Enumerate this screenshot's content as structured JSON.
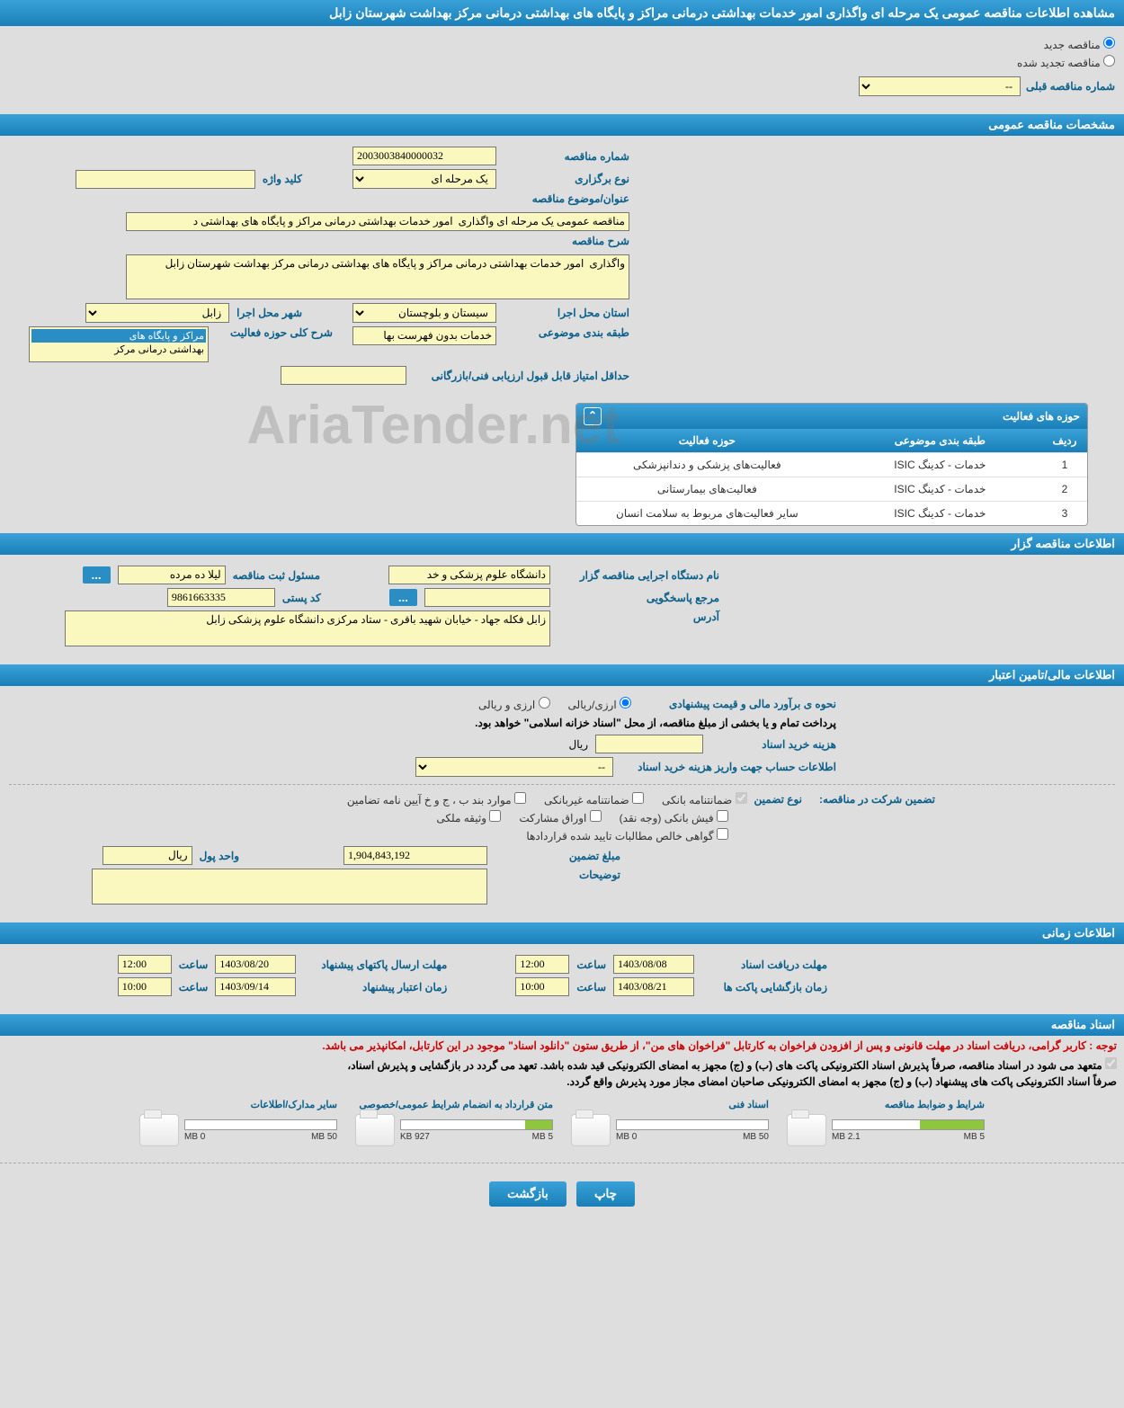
{
  "page_title": "مشاهده اطلاعات مناقصه عمومی یک مرحله ای واگذاری امور خدمات بهداشتی درمانی مراکز و پایگاه های بهداشتی درمانی مرکز بهداشت شهرستان زابل",
  "tender_status": {
    "new_label": "مناقصه جدید",
    "renewed_label": "مناقصه تجدید شده",
    "prev_number_label": "شماره مناقصه قبلی",
    "prev_number_value": "--"
  },
  "sections": {
    "general": "مشخصات مناقصه عمومی",
    "activity_areas": "حوزه های فعالیت",
    "organizer": "اطلاعات مناقصه گزار",
    "financial": "اطلاعات مالی/تامین اعتبار",
    "timing": "اطلاعات زمانی",
    "documents": "اسناد مناقصه"
  },
  "general": {
    "tender_no_label": "شماره مناقصه",
    "tender_no": "2003003840000032",
    "type_label": "نوع برگزاری",
    "type_value": "یک مرحله ای",
    "keyword_label": "کلید واژه",
    "keyword_value": "",
    "subject_label": "عنوان/موضوع مناقصه",
    "subject_value": "مناقصه عمومی یک مرحله ای واگذاری  امور خدمات بهداشتی درمانی مراکز و پایگاه های بهداشتی د",
    "desc_label": "شرح مناقصه",
    "desc_value": "واگذاری  امور خدمات بهداشتی درمانی مراکز و پایگاه های بهداشتی درمانی مرکز بهداشت شهرستان زابل",
    "province_label": "استان محل اجرا",
    "province_value": "سیستان و بلوچستان",
    "city_label": "شهر محل اجرا",
    "city_value": "زابل",
    "category_label": "طبقه بندی موضوعی",
    "category_value": "خدمات بدون فهرست بها",
    "activity_scope_label": "شرح کلی حوزه فعالیت",
    "activity_scope_options": [
      "مراکز و پایگاه های",
      "بهداشتی درمانی مرکز"
    ],
    "min_score_label": "حداقل امتیاز قابل قبول ارزیابی فنی/بازرگانی",
    "min_score_value": ""
  },
  "activity_table": {
    "columns": {
      "idx": "ردیف",
      "category": "طبقه بندی موضوعی",
      "activity": "حوزه فعالیت"
    },
    "rows": [
      {
        "idx": "1",
        "category": "خدمات - کدینگ ISIC",
        "activity": "فعالیت‌های پزشکی و دندانپزشکی"
      },
      {
        "idx": "2",
        "category": "خدمات - کدینگ ISIC",
        "activity": "فعالیت‌های بیمارستانی"
      },
      {
        "idx": "3",
        "category": "خدمات - کدینگ ISIC",
        "activity": "سایر فعالیت‌های مربوط به سلامت انسان"
      }
    ]
  },
  "organizer": {
    "org_label": "نام دستگاه اجرایی مناقصه گزار",
    "org_value": "دانشگاه علوم پزشکی و خد",
    "reg_resp_label": "مسئول ثبت مناقصه",
    "reg_resp_value": "لیلا ده مرده",
    "ref_label": "مرجع پاسخگویی",
    "ref_value": "",
    "postal_label": "کد پستی",
    "postal_value": "9861663335",
    "address_label": "آدرس",
    "address_value": "زابل فکله جهاد - خیابان شهید باقری - ستاد مرکزی دانشگاه علوم پزشکی زابل",
    "more_btn": "..."
  },
  "financial": {
    "estimate_label": "نحوه ی برآورد مالی و قیمت پیشنهادی",
    "opt_rial": "ارزی/ریالی",
    "opt_foreign": "ارزی و ریالی",
    "payment_note": "پرداخت تمام و یا بخشی از مبلغ مناقصه، از محل \"اسناد خزانه اسلامی\" خواهد بود.",
    "doc_cost_label": "هزینه خرید اسناد",
    "doc_cost_value": "",
    "currency_rial": "ریال",
    "account_label": "اطلاعات حساب جهت واریز هزینه خرید اسناد",
    "account_value": "--",
    "guarantee_label": "تضمین شرکت در مناقصه:",
    "guarantee_type_label": "نوع تضمین",
    "chk_bank_guarantee": "ضمانتنامه بانکی",
    "chk_nonbank_guarantee": "ضمانتنامه غیربانکی",
    "chk_annex": "موارد بند ب ، ج و خ آیین نامه تضامین",
    "chk_cash": "فیش بانکی (وجه نقد)",
    "chk_securities": "اوراق مشارکت",
    "chk_property": "وثیقه ملکی",
    "chk_claims": "گواهی خالص مطالبات تایید شده قراردادها",
    "guarantee_amount_label": "مبلغ تضمین",
    "guarantee_amount_value": "1,904,843,192",
    "currency_unit_label": "واحد پول",
    "currency_unit_value": "ریال",
    "notes_label": "توضیحات",
    "notes_value": ""
  },
  "timing": {
    "receive_deadline_label": "مهلت دریافت اسناد",
    "receive_date": "1403/08/08",
    "receive_time_label": "ساعت",
    "receive_time": "12:00",
    "send_deadline_label": "مهلت ارسال پاکتهای پیشنهاد",
    "send_date": "1403/08/20",
    "send_time": "12:00",
    "open_label": "زمان بازگشایی پاکت ها",
    "open_date": "1403/08/21",
    "open_time": "10:00",
    "validity_label": "زمان اعتبار پیشنهاد",
    "validity_date": "1403/09/14",
    "validity_time": "10:00"
  },
  "documents": {
    "red_note": "توجه : کاربر گرامی، دریافت اسناد در مهلت قانونی و پس از افزودن فراخوان به کارتابل \"فراخوان های من\"، از طریق ستون \"دانلود اسناد\" موجود در این کارتابل، امکانپذیر می باشد.",
    "note1": "متعهد می شود در اسناد مناقصه، صرفاً پذیرش اسناد الکترونیکی پاکت های (ب) و (ج) مجهز به امضای الکترونیکی قید شده باشد. تعهد می گردد در بازگشایی و پذیرش اسناد،",
    "note2": "صرفاً اسناد الکترونیکی پاکت های پیشنهاد (ب) و (ج) مجهز به امضای الکترونیکی صاحبان امضای مجاز مورد پذیرش واقع گردد.",
    "items": [
      {
        "title": "شرایط و ضوابط مناقصه",
        "used": "2.1 MB",
        "max": "5 MB",
        "pct": 42
      },
      {
        "title": "اسناد فنی",
        "used": "0 MB",
        "max": "50 MB",
        "pct": 0
      },
      {
        "title": "متن قرارداد به انضمام شرایط عمومی/خصوصی",
        "used": "927 KB",
        "max": "5 MB",
        "pct": 18
      },
      {
        "title": "سایر مدارک/اطلاعات",
        "used": "0 MB",
        "max": "50 MB",
        "pct": 0
      }
    ]
  },
  "buttons": {
    "print": "چاپ",
    "back": "بازگشت"
  },
  "colors": {
    "header_bg": "#2a8ec4",
    "yellow_field": "#fbf8bf",
    "page_bg": "#dedede",
    "label_color": "#0a5f8a",
    "progress_fill": "#8ec63f"
  }
}
